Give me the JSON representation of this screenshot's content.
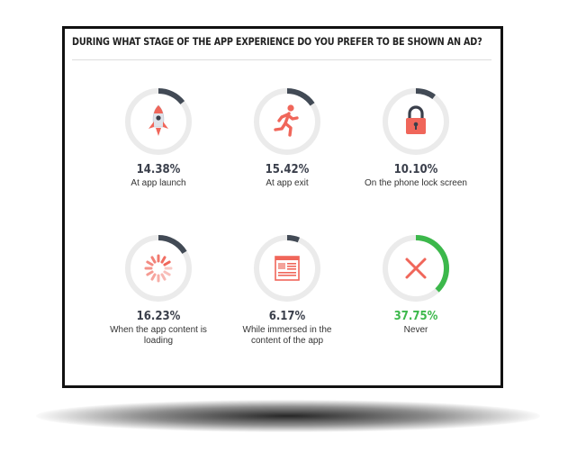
{
  "chart_data": {
    "type": "donut",
    "title": "DURING WHAT STAGE OF THE APP EXPERIENCE DO YOU PREFER TO BE SHOWN AN AD?",
    "items": [
      {
        "label": "At app launch",
        "value": 14.38,
        "value_text": "14.38%",
        "icon": "rocket-icon"
      },
      {
        "label": "At app exit",
        "value": 15.42,
        "value_text": "15.42%",
        "icon": "running-man-icon"
      },
      {
        "label": "On the phone lock screen",
        "value": 10.1,
        "value_text": "10.10%",
        "icon": "padlock-icon"
      },
      {
        "label": "When the app content is loading",
        "value": 16.23,
        "value_text": "16.23%",
        "icon": "loading-spinner-icon"
      },
      {
        "label": "While immersed in the content of the app",
        "value": 6.17,
        "value_text": "6.17%",
        "icon": "article-icon"
      },
      {
        "label": "Never",
        "value": 37.75,
        "value_text": "37.75%",
        "icon": "x-mark-icon"
      }
    ]
  },
  "colors": {
    "track": "#ebebeb",
    "arc": "#424a55",
    "arc_highlight": "#3cb84b",
    "icon_red": "#f0665a",
    "icon_dark": "#3a3f4b"
  }
}
